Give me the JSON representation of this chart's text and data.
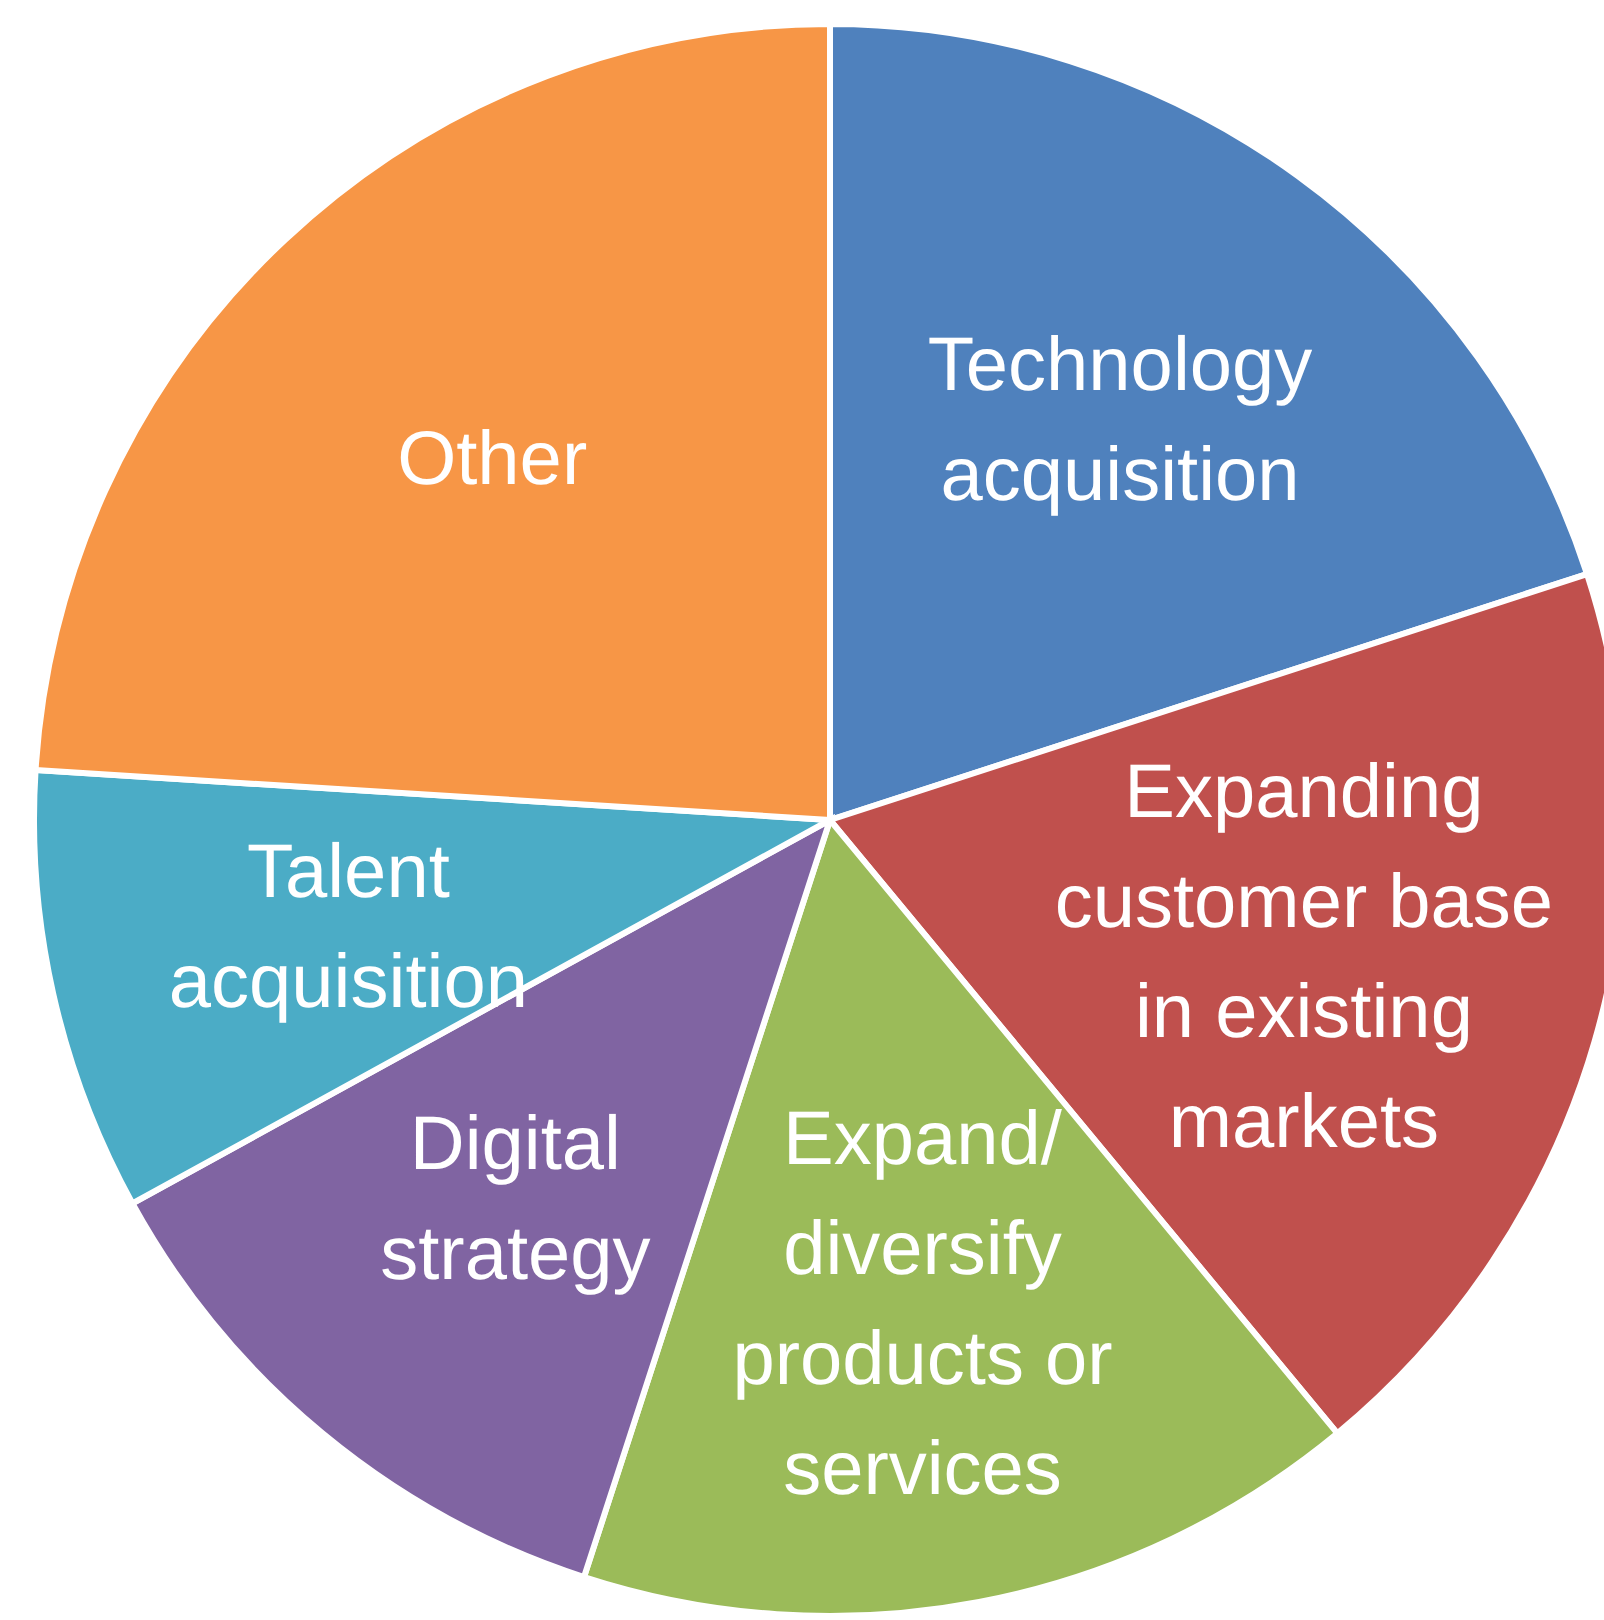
{
  "chart_data": {
    "type": "pie",
    "categories": [
      "Technology acquisition",
      "Expanding customer base in existing markets",
      "Expand/ diversify products or services",
      "Digital strategy",
      "Talent acquisition",
      "Other"
    ],
    "values": [
      20,
      19,
      16,
      12,
      9,
      24
    ],
    "colors": [
      "#4f81bd",
      "#c0504d",
      "#9bbb59",
      "#8064a2",
      "#4bacc6",
      "#f79646"
    ]
  }
}
